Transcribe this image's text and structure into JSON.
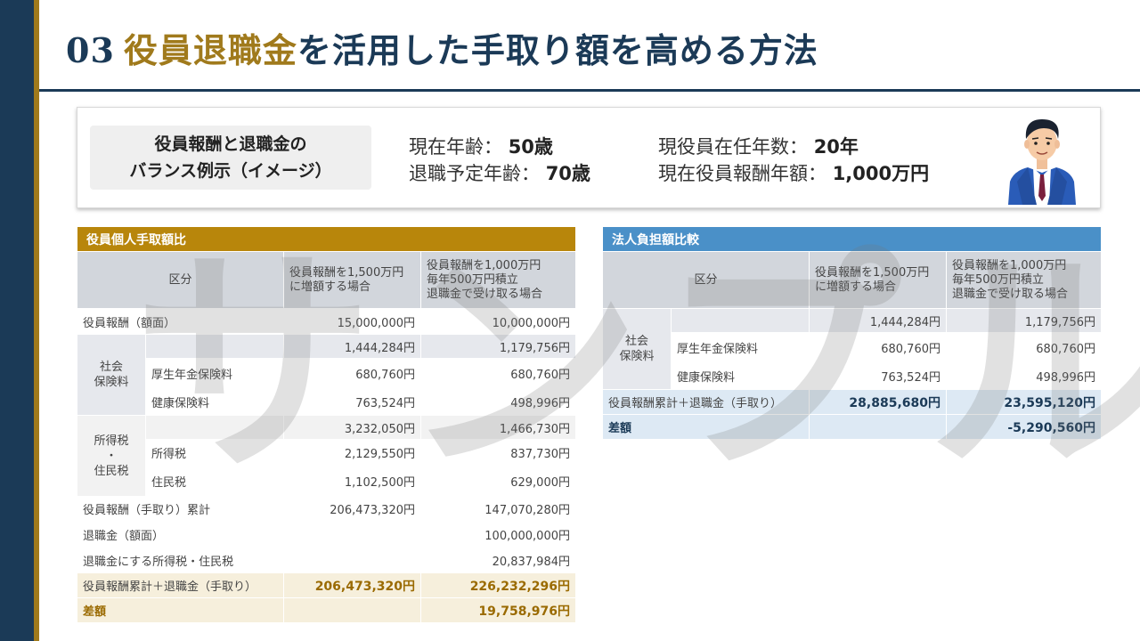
{
  "title": {
    "number": "03",
    "highlight": "役員退職金",
    "rest": "を活用した手取り額を高める方法"
  },
  "info": {
    "label": "役員報酬と退職金の\nバランス例示（イメージ）",
    "current_age_label": "現在年齢：",
    "current_age_value": "50歳",
    "retire_age_label": "退職予定年齢：",
    "retire_age_value": "70歳",
    "tenure_label": "現役員在任年数：",
    "tenure_value": "20年",
    "pay_label": "現在役員報酬年額：",
    "pay_value": "1,000万円"
  },
  "watermark": "サンプル",
  "table1": {
    "title": "役員個人手取額比",
    "col_kubun": "区分",
    "col_a": "役員報酬を1,500万円\nに増額する場合",
    "col_b": "役員報酬を1,000万円\n毎年500万円積立\n退職金で受け取る場合",
    "rows": {
      "gakumen": {
        "label": "役員報酬（額面）",
        "a": "15,000,000円",
        "b": "10,000,000円"
      },
      "shakai_group": "社会\n保険料",
      "shakai_total": {
        "a": "1,444,284円",
        "b": "1,179,756円"
      },
      "kosei": {
        "label": "厚生年金保険料",
        "a": "680,760円",
        "b": "680,760円"
      },
      "kenko": {
        "label": "健康保険料",
        "a": "763,524円",
        "b": "498,996円"
      },
      "tax_group": "所得税\n・\n住民税",
      "tax_total": {
        "a": "3,232,050円",
        "b": "1,466,730円"
      },
      "shotoku": {
        "label": "所得税",
        "a": "2,129,550円",
        "b": "837,730円"
      },
      "jumin": {
        "label": "住民税",
        "a": "1,102,500円",
        "b": "629,000円"
      },
      "ruikei": {
        "label": "役員報酬（手取り）累計",
        "a": "206,473,320円",
        "b": "147,070,280円"
      },
      "taishoku": {
        "label": "退職金（額面）",
        "a": "",
        "b": "100,000,000円"
      },
      "taishoku_tax": {
        "label": "退職金にする所得税・住民税",
        "a": "",
        "b": "20,837,984円"
      },
      "total": {
        "label": "役員報酬累計＋退職金（手取り）",
        "a": "206,473,320円",
        "b": "226,232,296円"
      },
      "diff": {
        "label": "差額",
        "a": "",
        "b": "19,758,976円"
      }
    }
  },
  "table2": {
    "title": "法人負担額比較",
    "col_kubun": "区分",
    "col_a": "役員報酬を1,500万円\nに増額する場合",
    "col_b": "役員報酬を1,000万円\n毎年500万円積立\n退職金で受け取る場合",
    "rows": {
      "shakai_group": "社会\n保険料",
      "shakai_total": {
        "a": "1,444,284円",
        "b": "1,179,756円"
      },
      "kosei": {
        "label": "厚生年金保険料",
        "a": "680,760円",
        "b": "680,760円"
      },
      "kenko": {
        "label": "健康保険料",
        "a": "763,524円",
        "b": "498,996円"
      },
      "total": {
        "label": "役員報酬累計＋退職金（手取り）",
        "a": "28,885,680円",
        "b": "23,595,120円"
      },
      "diff": {
        "label": "差額",
        "a": "",
        "b": "-5,290,560円"
      }
    }
  },
  "colors": {
    "navy": "#1b3a57",
    "gold": "#a07a1c",
    "blue_header": "#4a90c8",
    "gold_header": "#b8860b"
  }
}
